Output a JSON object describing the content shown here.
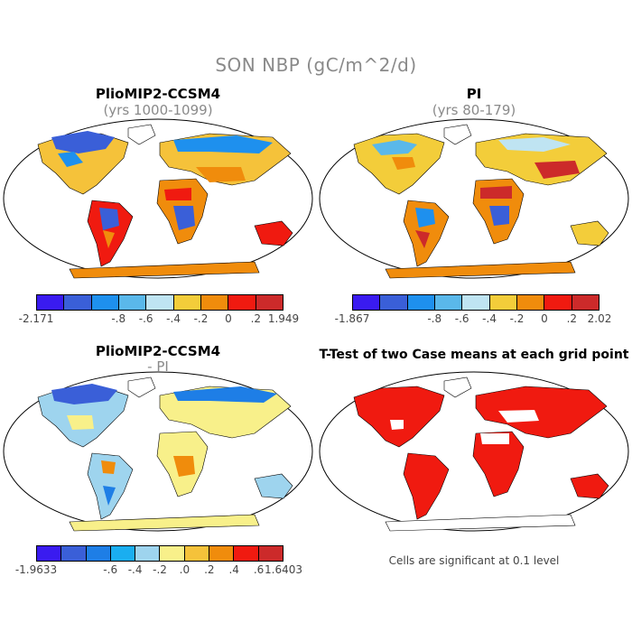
{
  "figure": {
    "title": "SON NBP (gC/m^2/d)"
  },
  "panels": [
    {
      "id": "pliomip",
      "title": "PlioMIP2-CCSM4",
      "subtitle": "(yrs 1000-1099)",
      "colorbar": {
        "colors": [
          "#3a1bf0",
          "#3a5fd8",
          "#1e90ee",
          "#5ab8ea",
          "#bfe4f2",
          "#f3cd3a",
          "#f08c0c",
          "#f01a10",
          "#cc2a2a"
        ],
        "labels": [
          "-2.171",
          "-.8",
          "-.6",
          "-.4",
          "-.2",
          "0",
          ".2",
          "1.949"
        ]
      }
    },
    {
      "id": "pi",
      "title": "PI",
      "subtitle": "(yrs 80-179)",
      "colorbar": {
        "colors": [
          "#3a1bf0",
          "#3a5fd8",
          "#1e90ee",
          "#5ab8ea",
          "#bfe4f2",
          "#f3cd3a",
          "#f08c0c",
          "#f01a10",
          "#cc2a2a"
        ],
        "labels": [
          "-1.867",
          "-.8",
          "-.6",
          "-.4",
          "-.2",
          "0",
          ".2",
          "2.02"
        ]
      }
    },
    {
      "id": "diff",
      "title": "PlioMIP2-CCSM4",
      "subtitle": "- PI",
      "colorbar": {
        "colors": [
          "#3a1bf0",
          "#3a5fd8",
          "#1e7ee6",
          "#1aaef0",
          "#9ed4ee",
          "#f8f08a",
          "#f5c23a",
          "#f08c0c",
          "#f01a10",
          "#cc2a2a"
        ],
        "labels": [
          "-1.9633",
          "-.6",
          "-.4",
          "-.2",
          ".0",
          ".2",
          ".4",
          ".6",
          "1.6403"
        ]
      }
    },
    {
      "id": "ttest",
      "title": "T-Test of two Case means at each grid point",
      "note": "Cells are significant at 0.1 level"
    }
  ],
  "colors": {
    "panel_outline": "#000000",
    "ttest_significant": "#f01a10"
  }
}
